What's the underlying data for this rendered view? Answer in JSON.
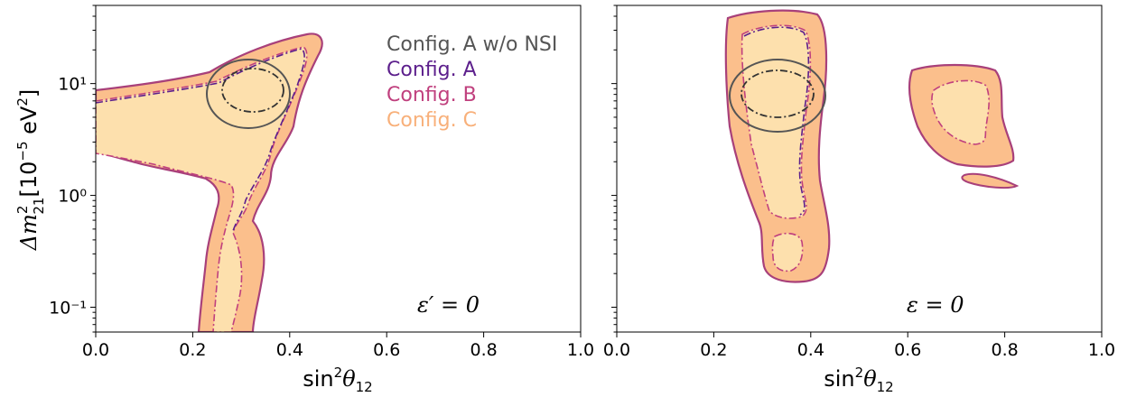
{
  "colors": {
    "config_a_wo_nsi": "#555555",
    "config_a": "#5c1f8c",
    "config_b": "#c0407e",
    "config_c_fill_outer": "#fbbf8c",
    "config_c_fill_inner": "#fde0ad"
  },
  "legend": {
    "placement": "top-right",
    "entries": [
      "Config. A w/o NSI",
      "Config. A",
      "Config. B",
      "Config. C"
    ]
  },
  "ylabel": "Δm²₂₁[10⁻⁵ eV²]",
  "ylabel_parts": {
    "main": "Δm",
    "sup": "2",
    "sub": "21",
    "rest": "[10",
    "exp": "−5",
    "unit": " eV",
    "unitsup": "2",
    "close": "]"
  },
  "xlabel_parts": {
    "main": "sin",
    "sup": "2",
    "theta": "θ",
    "sub": "12"
  },
  "chart_data": [
    {
      "type": "contour",
      "panel": "left",
      "annotation": "ε′ = 0",
      "xlim": [
        0.0,
        1.0
      ],
      "ylim": [
        0.06,
        50
      ],
      "yscale": "log",
      "xticks": [
        "0.0",
        "0.2",
        "0.4",
        "0.6",
        "0.8",
        "1.0"
      ],
      "yticks": [
        "10⁻¹",
        "10⁰",
        "10¹"
      ],
      "series": [
        {
          "name": "Config. A w/o NSI",
          "region": "ellipse",
          "center": [
            0.32,
            9.0
          ],
          "x_range": [
            0.23,
            0.4
          ],
          "y_range": [
            4.5,
            17
          ]
        },
        {
          "name": "Config. C",
          "region": "band + vertical arm",
          "x_range": [
            0.0,
            0.43
          ],
          "y_range": [
            0.06,
            30
          ]
        }
      ]
    },
    {
      "type": "contour",
      "panel": "right",
      "annotation": "ε = 0",
      "xlim": [
        0.0,
        1.0
      ],
      "ylim": [
        0.06,
        50
      ],
      "yscale": "log",
      "xticks": [
        "0.0",
        "0.2",
        "0.4",
        "0.6",
        "0.8",
        "1.0"
      ],
      "series": [
        {
          "name": "Config. A w/o NSI",
          "region": "ellipse",
          "center": [
            0.32,
            8.5
          ],
          "x_range": [
            0.23,
            0.43
          ],
          "y_range": [
            4.0,
            16
          ]
        },
        {
          "name": "Config. C",
          "region": "vertical island",
          "x_range": [
            0.2,
            0.43
          ],
          "y_range": [
            0.2,
            50
          ]
        },
        {
          "name": "Config. C",
          "region": "right island",
          "x_range": [
            0.6,
            0.82
          ],
          "y_range": [
            1.2,
            12
          ]
        }
      ]
    }
  ]
}
